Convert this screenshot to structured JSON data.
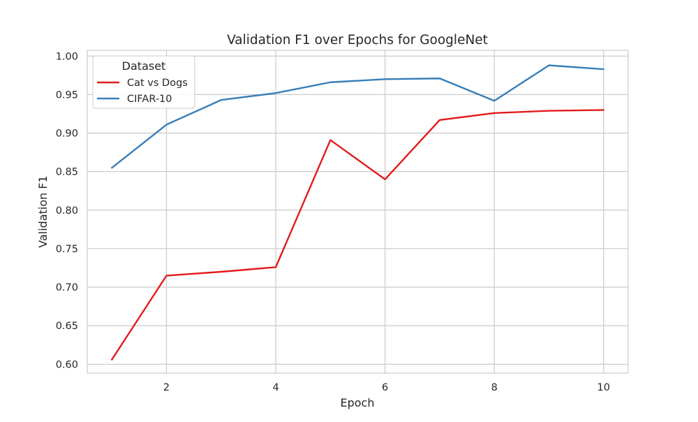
{
  "chart_data": {
    "type": "line",
    "title": "Validation F1 over Epochs for GoogleNet",
    "xlabel": "Epoch",
    "ylabel": "Validation F1",
    "x": [
      1,
      2,
      3,
      4,
      5,
      6,
      7,
      8,
      9,
      10
    ],
    "xticks": [
      2,
      4,
      6,
      8,
      10
    ],
    "yticks": [
      0.6,
      0.65,
      0.7,
      0.75,
      0.8,
      0.85,
      0.9,
      0.95,
      1.0
    ],
    "xlim": [
      0.55,
      10.45
    ],
    "ylim": [
      0.5885,
      1.0075
    ],
    "grid": true,
    "legend": {
      "title": "Dataset",
      "placement": "top-left"
    },
    "series": [
      {
        "name": "Cat vs Dogs",
        "color": "#e41a1c",
        "values": [
          0.606,
          0.715,
          0.72,
          0.726,
          0.891,
          0.84,
          0.917,
          0.926,
          0.929,
          0.93
        ]
      },
      {
        "name": "CIFAR-10",
        "color": "#377eb8",
        "values": [
          0.855,
          0.911,
          0.943,
          0.952,
          0.966,
          0.97,
          0.971,
          0.942,
          0.988,
          0.983
        ]
      }
    ]
  }
}
